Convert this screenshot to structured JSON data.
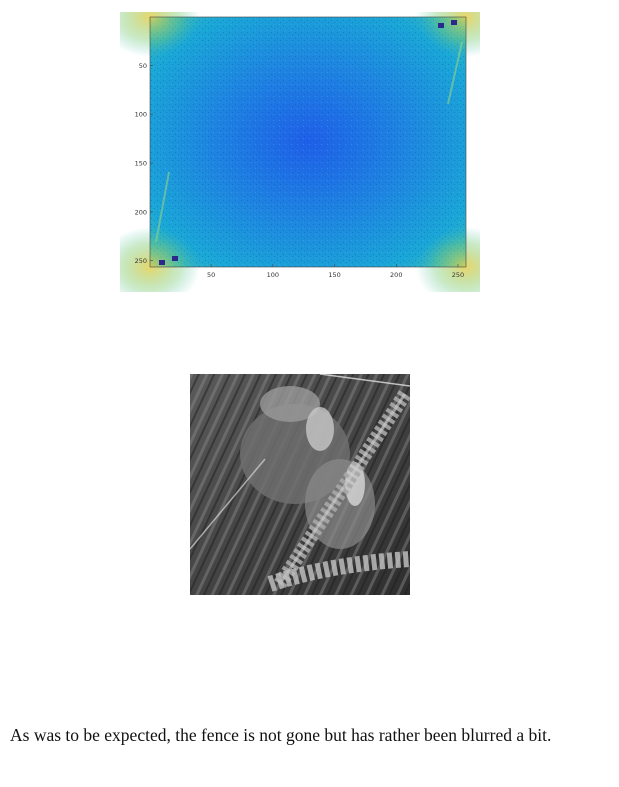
{
  "figure": {
    "x_ticks": [
      "50",
      "100",
      "150",
      "200",
      "250"
    ],
    "y_ticks": [
      "50",
      "100",
      "150",
      "200",
      "250"
    ],
    "colormap": "parula",
    "center_color": "#1f5fe8",
    "field_color": "#1e9bdc",
    "edge_color": "#e6d050",
    "marker_color": "#2b2a8c"
  },
  "photo": {
    "description_icon": "image-icon"
  },
  "caption": {
    "text": "As was to be expected, the fence is not gone but has rather been blurred a bit."
  }
}
